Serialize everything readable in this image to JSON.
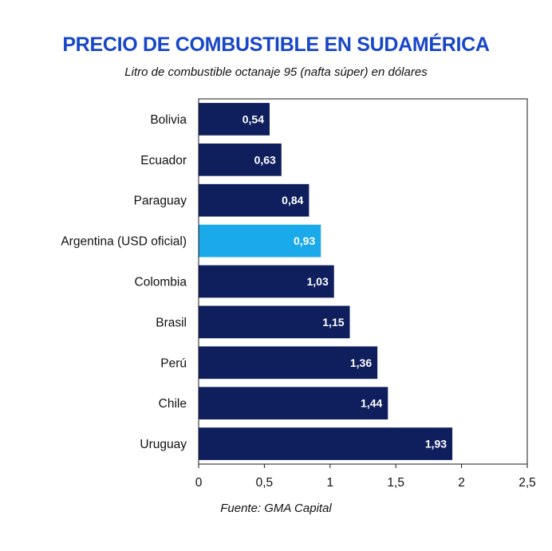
{
  "colors": {
    "title": "#1746c7",
    "bar": "#0f1f5e",
    "highlight_bar": "#1aa9ea",
    "axis": "#1a1a1a"
  },
  "chart_data": {
    "type": "bar",
    "orientation": "horizontal",
    "title": "PRECIO DE COMBUSTIBLE EN SUDAMÉRICA",
    "subtitle": "Litro de combustible octanaje 95 (nafta súper) en dólares",
    "source": "Fuente: GMA Capital",
    "xlabel": "",
    "ylabel": "",
    "xlim": [
      0,
      2.5
    ],
    "x_ticks": [
      0,
      0.5,
      1,
      1.5,
      2,
      2.5
    ],
    "x_tick_labels": [
      "0",
      "0,5",
      "1",
      "1,5",
      "2",
      "2,5"
    ],
    "categories": [
      "Bolivia",
      "Ecuador",
      "Paraguay",
      "Argentina (USD oficial)",
      "Colombia",
      "Brasil",
      "Perú",
      "Chile",
      "Uruguay"
    ],
    "values": [
      0.54,
      0.63,
      0.84,
      0.93,
      1.03,
      1.15,
      1.36,
      1.44,
      1.93
    ],
    "value_labels": [
      "0,54",
      "0,63",
      "0,84",
      "0,93",
      "1,03",
      "1,15",
      "1,36",
      "1,44",
      "1,93"
    ],
    "highlight": "Argentina (USD oficial)",
    "grid": false
  }
}
